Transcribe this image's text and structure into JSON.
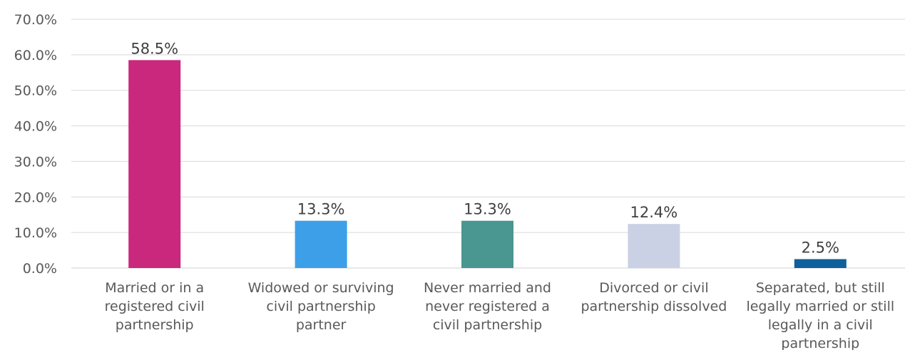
{
  "chart_data": {
    "type": "bar",
    "title": "",
    "xlabel": "",
    "ylabel": "",
    "ylim": [
      0,
      70
    ],
    "grid": true,
    "legend": "none",
    "y_ticks": [
      "0.0%",
      "10.0%",
      "20.0%",
      "30.0%",
      "40.0%",
      "50.0%",
      "60.0%",
      "70.0%"
    ],
    "categories": [
      [
        "Married or in a",
        "registered civil",
        "partnership"
      ],
      [
        "Widowed or surviving",
        "civil partnership",
        "partner"
      ],
      [
        "Never married and",
        "never registered a",
        "civil partnership"
      ],
      [
        "Divorced or civil",
        "partnership dissolved"
      ],
      [
        "Separated, but still",
        "legally married or still",
        "legally in a civil",
        "partnership"
      ]
    ],
    "values": [
      58.5,
      13.3,
      13.3,
      12.4,
      2.5
    ],
    "data_labels": [
      "58.5%",
      "13.3%",
      "13.3%",
      "12.4%",
      "2.5%"
    ],
    "colors": [
      "#C9287D",
      "#3D9FE8",
      "#4A9690",
      "#CBD1E4",
      "#0F5F9C"
    ]
  }
}
